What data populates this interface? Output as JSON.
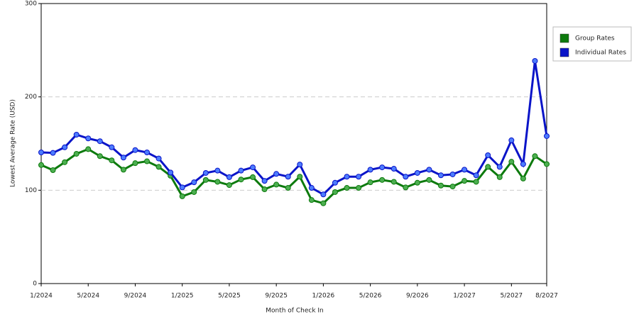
{
  "chart_data": {
    "type": "line",
    "x_label": "Month of Check In",
    "y_label": "Lowest Average Rate (USD)",
    "categories": [
      "1/2024",
      null,
      null,
      null,
      "5/2024",
      null,
      null,
      null,
      "9/2024",
      null,
      null,
      null,
      "1/2025",
      null,
      null,
      null,
      "5/2025",
      null,
      null,
      null,
      "9/2025",
      null,
      null,
      null,
      "1/2026",
      null,
      null,
      null,
      "5/2026",
      null,
      null,
      null,
      "9/2026",
      null,
      null,
      null,
      "1/2027",
      null,
      null,
      null,
      "5/2027",
      null,
      null,
      "8/2027"
    ],
    "series": [
      {
        "name": "Group Rates",
        "color": "#0d7a0d",
        "marker": "#4caf50",
        "values": [
          127,
          121.5,
          130,
          139,
          144,
          136.5,
          132,
          122,
          129,
          131,
          125,
          115.5,
          93.5,
          98,
          111,
          109,
          105.5,
          111.5,
          114,
          101,
          106,
          102.5,
          114.5,
          89.5,
          86,
          98,
          102.5,
          102.5,
          108.5,
          111,
          109,
          103,
          108,
          111,
          105,
          104,
          110,
          109,
          125,
          114,
          130.5,
          112.5,
          136.5,
          128
        ]
      },
      {
        "name": "Individual Rates",
        "color": "#0a14c8",
        "marker": "#4d7cff",
        "values": [
          140.5,
          140,
          146,
          159.5,
          155.5,
          152.5,
          146,
          135,
          143,
          140.5,
          134,
          119,
          103,
          108.5,
          118.5,
          121,
          114,
          121,
          124.5,
          110,
          117.5,
          114.5,
          127.5,
          102.5,
          95.5,
          108,
          114.5,
          114.5,
          122,
          124.5,
          123,
          114.5,
          118.5,
          122,
          116,
          117,
          122,
          116,
          137.5,
          125,
          153.5,
          128,
          238.5,
          158
        ]
      }
    ],
    "ylim": [
      0,
      300
    ],
    "yticks": [
      0,
      100,
      200,
      300
    ],
    "grid": true,
    "legend": "right"
  }
}
